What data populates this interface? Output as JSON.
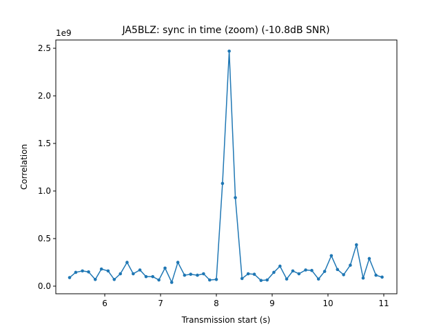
{
  "chart_data": {
    "type": "line",
    "title": "JA5BLZ: sync in time (zoom) (-10.8dB SNR)",
    "x_label": "Transmission start (s)",
    "y_label": "Correlation",
    "y_offset_label": "1e9",
    "x": [
      5.37,
      5.48,
      5.6,
      5.71,
      5.83,
      5.94,
      6.06,
      6.17,
      6.28,
      6.4,
      6.51,
      6.63,
      6.74,
      6.86,
      6.97,
      7.08,
      7.2,
      7.31,
      7.43,
      7.54,
      7.66,
      7.77,
      7.88,
      8.0,
      8.11,
      8.23,
      8.34,
      8.46,
      8.57,
      8.68,
      8.8,
      8.91,
      9.03,
      9.14,
      9.26,
      9.37,
      9.48,
      9.6,
      9.71,
      9.83,
      9.94,
      10.06,
      10.17,
      10.28,
      10.4,
      10.51,
      10.63,
      10.74,
      10.86,
      10.97
    ],
    "series": [
      {
        "color": "#1f77b4",
        "values": [
          0.09,
          0.145,
          0.16,
          0.15,
          0.07,
          0.18,
          0.16,
          0.07,
          0.13,
          0.25,
          0.13,
          0.17,
          0.1,
          0.1,
          0.065,
          0.19,
          0.04,
          0.25,
          0.115,
          0.125,
          0.115,
          0.13,
          0.065,
          0.07,
          1.08,
          2.47,
          0.93,
          0.08,
          0.13,
          0.125,
          0.06,
          0.065,
          0.145,
          0.21,
          0.075,
          0.16,
          0.13,
          0.17,
          0.165,
          0.075,
          0.155,
          0.32,
          0.175,
          0.12,
          0.22,
          0.435,
          0.085,
          0.29,
          0.115,
          0.095
        ]
      }
    ],
    "xlim": [
      5.123,
      11.235
    ],
    "ylim": [
      -0.08,
      2.587
    ],
    "xticks": [
      6,
      7,
      8,
      9,
      10,
      11
    ],
    "yticks": [
      {
        "value": 0,
        "label": "0.0"
      },
      0.5,
      {
        "value": 1,
        "label": "1.0"
      },
      1.5,
      {
        "value": 2,
        "label": "2.0"
      },
      2.5
    ]
  }
}
